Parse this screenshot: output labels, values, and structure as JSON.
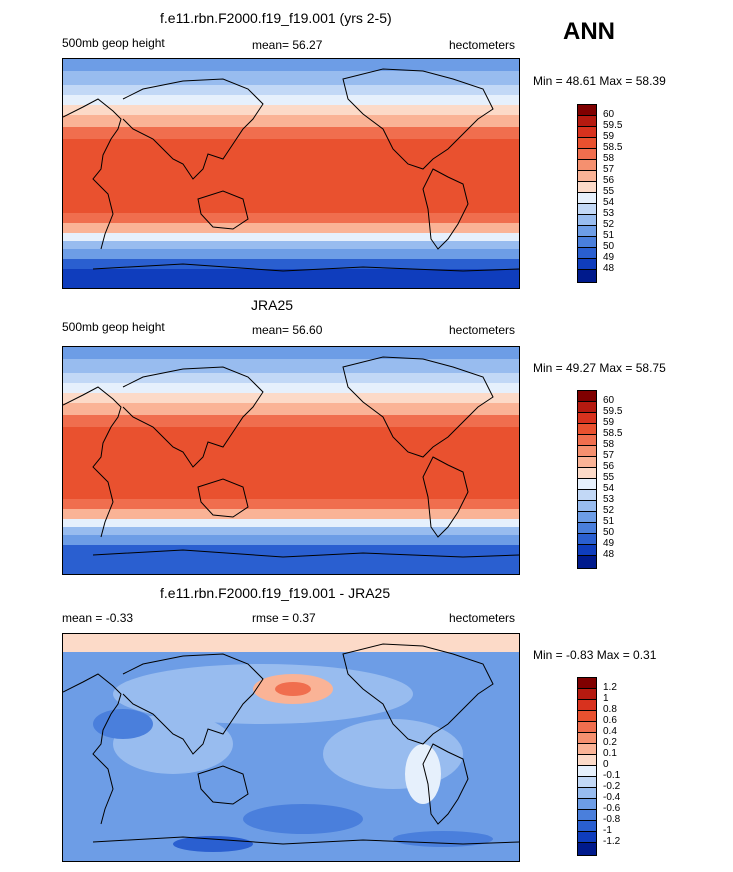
{
  "season": "ANN",
  "panels": [
    {
      "title": "f.e11.rbn.F2000.f19_f19.001 (yrs 2-5)",
      "left_label": "500mb geop height",
      "mean_text": "mean=  56.27",
      "units": "hectometers",
      "minmax": "Min =  48.61 Max =  58.39",
      "colorbar_labels": [
        "60",
        "59.5",
        "59",
        "58.5",
        "58",
        "57",
        "56",
        "55",
        "54",
        "53",
        "52",
        "51",
        "50",
        "49",
        "48"
      ]
    },
    {
      "title": "JRA25",
      "left_label": "500mb geop height",
      "mean_text": "mean=  56.60",
      "units": "hectometers",
      "minmax": "Min =  49.27 Max =  58.75",
      "colorbar_labels": [
        "60",
        "59.5",
        "59",
        "58.5",
        "58",
        "57",
        "56",
        "55",
        "54",
        "53",
        "52",
        "51",
        "50",
        "49",
        "48"
      ]
    },
    {
      "title": "f.e11.rbn.F2000.f19_f19.001 - JRA25",
      "left_label": "mean =  -0.33",
      "mean_text": "rmse =   0.37",
      "units": "hectometers",
      "minmax": "Min =  -0.83 Max =   0.31",
      "colorbar_labels": [
        "1.2",
        "1",
        "0.8",
        "0.6",
        "0.4",
        "0.2",
        "0.1",
        "0",
        "-0.1",
        "-0.2",
        "-0.4",
        "-0.6",
        "-0.8",
        "-1",
        "-1.2"
      ]
    }
  ],
  "colors": {
    "scale": [
      "#7f0000",
      "#b51a10",
      "#d8321e",
      "#e9512f",
      "#f06e4e",
      "#f5906f",
      "#fab396",
      "#fcdac8",
      "#e6f0fc",
      "#c2d8f6",
      "#98bcef",
      "#6d9de6",
      "#4a7fdc",
      "#2a5fd0",
      "#0f3dbd",
      "#001a8c"
    ],
    "land": "#000000"
  }
}
